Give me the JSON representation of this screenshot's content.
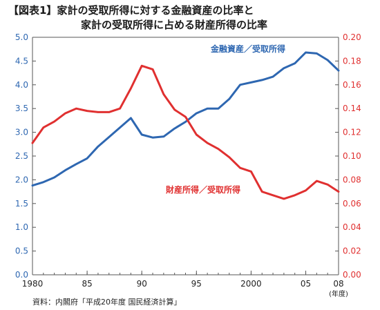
{
  "title_line1": "【図表1】家計の受取所得に対する金融資産の比率と",
  "title_line2": "家計の受取所得に占める財産所得の比率",
  "source": "資料：内閣府「平成20年度 国民経済計算」",
  "chart_data": {
    "type": "line",
    "x": [
      1980,
      1981,
      1982,
      1983,
      1984,
      1985,
      1986,
      1987,
      1988,
      1989,
      1990,
      1991,
      1992,
      1993,
      1994,
      1995,
      1996,
      1997,
      1998,
      1999,
      2000,
      2001,
      2002,
      2003,
      2004,
      2005,
      2006,
      2007,
      2008
    ],
    "x_tick_values": [
      1980,
      1985,
      1990,
      1995,
      2000,
      2005,
      2008
    ],
    "x_tick_labels": [
      "1980",
      "85",
      "90",
      "95",
      "2000",
      "05",
      "08"
    ],
    "x_unit_label": "(年度)",
    "xlim": [
      1980,
      2008
    ],
    "y_left_lim": [
      0,
      5.0
    ],
    "y_left_ticks": [
      "0.0",
      "0.5",
      "1.0",
      "1.5",
      "2.0",
      "2.5",
      "3.0",
      "3.5",
      "4.0",
      "4.5",
      "5.0"
    ],
    "y_right_lim": [
      0,
      0.2
    ],
    "y_right_ticks": [
      "0.00",
      "0.02",
      "0.04",
      "0.06",
      "0.08",
      "0.10",
      "0.12",
      "0.14",
      "0.16",
      "0.18",
      "0.20"
    ],
    "grid": false,
    "series": [
      {
        "name": "金融資産／受取所得",
        "axis": "left",
        "color": "#2e67b1",
        "values": [
          1.88,
          1.95,
          2.05,
          2.2,
          2.33,
          2.45,
          2.7,
          2.9,
          3.1,
          3.3,
          2.95,
          2.89,
          2.91,
          3.08,
          3.22,
          3.4,
          3.5,
          3.5,
          3.7,
          4.0,
          4.05,
          4.1,
          4.17,
          4.35,
          4.45,
          4.68,
          4.66,
          4.52,
          4.3
        ]
      },
      {
        "name": "財産所得／受取所得",
        "axis": "right",
        "color": "#e03030",
        "values": [
          0.111,
          0.124,
          0.129,
          0.136,
          0.14,
          0.138,
          0.137,
          0.137,
          0.14,
          0.157,
          0.176,
          0.173,
          0.152,
          0.139,
          0.133,
          0.118,
          0.111,
          0.106,
          0.099,
          0.09,
          0.087,
          0.07,
          0.067,
          0.064,
          0.067,
          0.071,
          0.079,
          0.076,
          0.07
        ]
      }
    ]
  }
}
